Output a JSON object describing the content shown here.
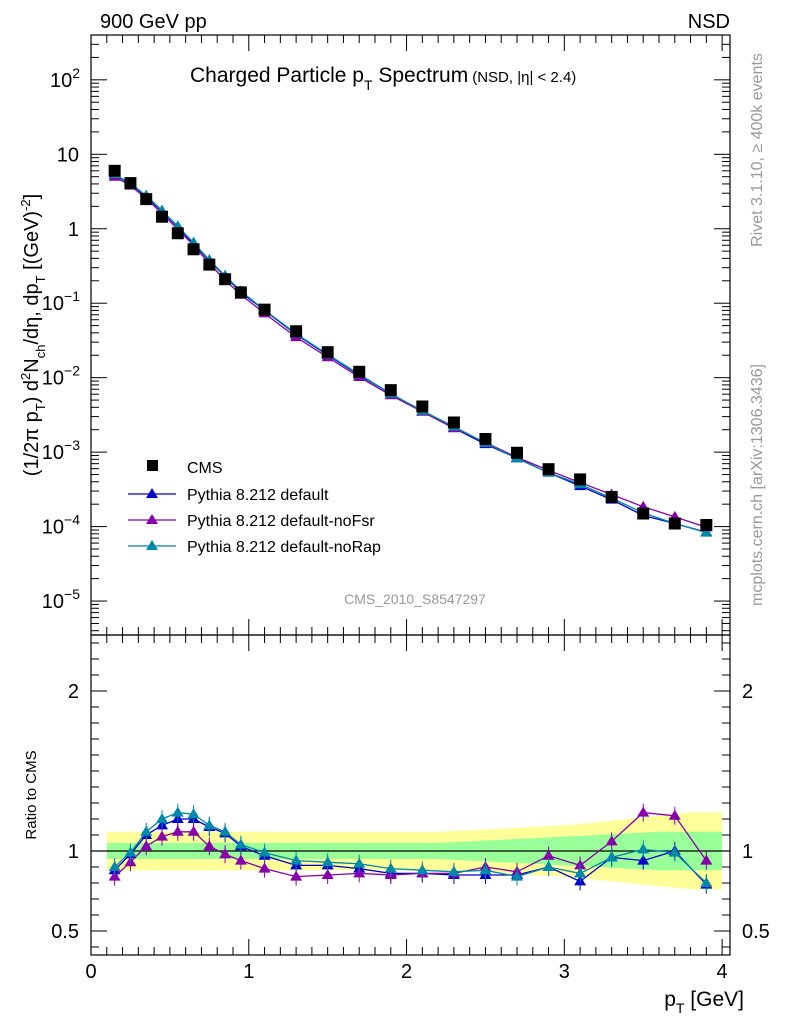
{
  "header": {
    "left": "900 GeV pp",
    "right": "NSD"
  },
  "side_labels": {
    "rivet": "Rivet 3.1.10, ≥ 400k events",
    "mcplots": "mcplots.cern.ch [arXiv:1306.3436]"
  },
  "watermark": "CMS_2010_S8547297",
  "colors": {
    "data": "#000000",
    "default": "#0000cc",
    "noFsr": "#8800aa",
    "noRap": "#0088aa",
    "band_outer": "#ffff99",
    "band_inner": "#99ff99"
  },
  "chart_data": [
    {
      "type": "line",
      "panel": "main",
      "title_main": "Charged Particle p",
      "title_sub": "T",
      "title_main2": " Spectrum",
      "title_qual": "(NSD, |η| < 2.4)",
      "ylabel": "(1/2π p_T) d²N_ch/dη, dp_T [(GeV)⁻²]",
      "ylabel_parts": {
        "a": "(1/2π p",
        "b": "T",
        "c": ") d",
        "d": "2",
        "e": "N",
        "f": "ch",
        "g": "/dη, dp",
        "h": "T",
        "i": " [(GeV)",
        "j": "-2",
        "k": "]"
      },
      "yscale": "log",
      "ylim": [
        3.5e-06,
        400
      ],
      "xlim": [
        0,
        4.05
      ],
      "y_ticks": [
        {
          "v": 1e-05,
          "base": "10",
          "exp": "−5"
        },
        {
          "v": 0.0001,
          "base": "10",
          "exp": "−4"
        },
        {
          "v": 0.001,
          "base": "10",
          "exp": "−3"
        },
        {
          "v": 0.01,
          "base": "10",
          "exp": "−2"
        },
        {
          "v": 0.1,
          "base": "10",
          "exp": "−1"
        },
        {
          "v": 1,
          "base": "1",
          "exp": ""
        },
        {
          "v": 10,
          "base": "10",
          "exp": ""
        },
        {
          "v": 100,
          "base": "10",
          "exp": "2"
        }
      ],
      "legend": [
        {
          "key": "data",
          "label": "CMS",
          "marker": "square"
        },
        {
          "key": "default",
          "label": "Pythia 8.212 default",
          "marker": "triangle"
        },
        {
          "key": "noFsr",
          "label": "Pythia 8.212 default-noFsr",
          "marker": "triangle"
        },
        {
          "key": "noRap",
          "label": "Pythia 8.212 default-noRap",
          "marker": "triangle"
        }
      ],
      "x": [
        0.15,
        0.25,
        0.35,
        0.45,
        0.55,
        0.65,
        0.75,
        0.85,
        0.95,
        1.1,
        1.3,
        1.5,
        1.7,
        1.9,
        2.1,
        2.3,
        2.5,
        2.7,
        2.9,
        3.1,
        3.3,
        3.5,
        3.7,
        3.9
      ],
      "data": [
        6.0,
        4.1,
        2.5,
        1.45,
        0.87,
        0.53,
        0.33,
        0.21,
        0.14,
        0.082,
        0.042,
        0.022,
        0.012,
        0.0068,
        0.0041,
        0.0025,
        0.0015,
        0.00098,
        0.00059,
        0.00043,
        0.00025,
        0.00015,
        0.00011,
        0.000105
      ],
      "series": [
        {
          "key": "default",
          "name": "Pythia 8.212 default",
          "values": [
            5.3,
            4.0,
            2.7,
            1.7,
            1.05,
            0.63,
            0.37,
            0.23,
            0.14,
            0.08,
            0.038,
            0.02,
            0.0108,
            0.0061,
            0.0035,
            0.0021,
            0.00128,
            0.00083,
            0.00053,
            0.00035,
            0.00023,
            0.000141,
            0.00011,
            8.4e-05
          ]
        },
        {
          "key": "noFsr",
          "name": "Pythia 8.212 default-noFsr",
          "values": [
            5.0,
            3.8,
            2.55,
            1.6,
            0.98,
            0.6,
            0.34,
            0.205,
            0.13,
            0.073,
            0.035,
            0.0188,
            0.0102,
            0.0058,
            0.0035,
            0.0021,
            0.00135,
            0.00085,
            0.00057,
            0.00039,
            0.00027,
            0.000185,
            0.000135,
            9.8e-05
          ]
        },
        {
          "key": "noRap",
          "name": "Pythia 8.212 default-noRap",
          "values": [
            5.4,
            4.05,
            2.8,
            1.75,
            1.08,
            0.65,
            0.38,
            0.235,
            0.145,
            0.081,
            0.039,
            0.0205,
            0.0111,
            0.0061,
            0.0036,
            0.0022,
            0.00133,
            0.00082,
            0.00053,
            0.00037,
            0.00024,
            0.000153,
            0.00011,
            8.3e-05
          ]
        }
      ]
    },
    {
      "type": "line",
      "panel": "ratio",
      "ylabel": "Ratio to CMS",
      "xlabel": "p_T [GeV]",
      "xlabel_parts": {
        "a": "p",
        "b": "T",
        "c": " [GeV]"
      },
      "ylim": [
        0.35,
        2.35
      ],
      "xlim": [
        0,
        4.05
      ],
      "y_ticks": [
        {
          "v": 0.5,
          "label": "0.5"
        },
        {
          "v": 1,
          "label": "1"
        },
        {
          "v": 2,
          "label": "2"
        }
      ],
      "x_ticks": [
        {
          "v": 0,
          "label": "0"
        },
        {
          "v": 1,
          "label": "1"
        },
        {
          "v": 2,
          "label": "2"
        },
        {
          "v": 3,
          "label": "3"
        },
        {
          "v": 4,
          "label": "4"
        }
      ],
      "band_x": [
        0.1,
        0.2,
        0.3,
        0.4,
        0.5,
        0.6,
        0.7,
        0.8,
        0.9,
        1.0,
        1.2,
        1.4,
        1.6,
        1.8,
        2.0,
        2.2,
        2.4,
        2.6,
        2.8,
        3.0,
        3.2,
        3.4,
        3.6,
        3.8,
        4.0
      ],
      "band_outer": [
        0.12,
        0.12,
        0.12,
        0.12,
        0.12,
        0.12,
        0.12,
        0.12,
        0.12,
        0.12,
        0.12,
        0.12,
        0.12,
        0.12,
        0.12,
        0.12,
        0.13,
        0.14,
        0.15,
        0.16,
        0.18,
        0.2,
        0.22,
        0.24,
        0.24
      ],
      "band_inner": [
        0.05,
        0.05,
        0.05,
        0.05,
        0.05,
        0.05,
        0.05,
        0.05,
        0.05,
        0.05,
        0.05,
        0.05,
        0.05,
        0.05,
        0.05,
        0.05,
        0.06,
        0.07,
        0.08,
        0.09,
        0.1,
        0.11,
        0.12,
        0.12,
        0.12
      ],
      "x": [
        0.15,
        0.25,
        0.35,
        0.45,
        0.55,
        0.65,
        0.75,
        0.85,
        0.95,
        1.1,
        1.3,
        1.5,
        1.7,
        1.9,
        2.1,
        2.3,
        2.5,
        2.7,
        2.9,
        3.1,
        3.3,
        3.5,
        3.7,
        3.9
      ],
      "series": [
        {
          "key": "default",
          "name": "Pythia 8.212 default",
          "values": [
            0.88,
            0.98,
            1.1,
            1.16,
            1.2,
            1.2,
            1.15,
            1.11,
            1.03,
            0.97,
            0.91,
            0.91,
            0.89,
            0.86,
            0.86,
            0.85,
            0.85,
            0.85,
            0.9,
            0.81,
            0.96,
            0.94,
            1.0,
            0.79
          ]
        },
        {
          "key": "noFsr",
          "name": "Pythia 8.212 default-noFsr",
          "values": [
            0.84,
            0.93,
            1.03,
            1.09,
            1.12,
            1.12,
            1.03,
            0.98,
            0.94,
            0.89,
            0.84,
            0.85,
            0.86,
            0.85,
            0.86,
            0.86,
            0.9,
            0.87,
            0.97,
            0.91,
            1.06,
            1.24,
            1.22,
            0.94
          ]
        },
        {
          "key": "noRap",
          "name": "Pythia 8.212 default-noRap",
          "values": [
            0.9,
            0.99,
            1.12,
            1.2,
            1.24,
            1.23,
            1.16,
            1.12,
            1.04,
            0.99,
            0.94,
            0.93,
            0.92,
            0.89,
            0.88,
            0.87,
            0.88,
            0.84,
            0.9,
            0.86,
            0.96,
            1.01,
            0.99,
            0.8
          ]
        }
      ]
    }
  ]
}
